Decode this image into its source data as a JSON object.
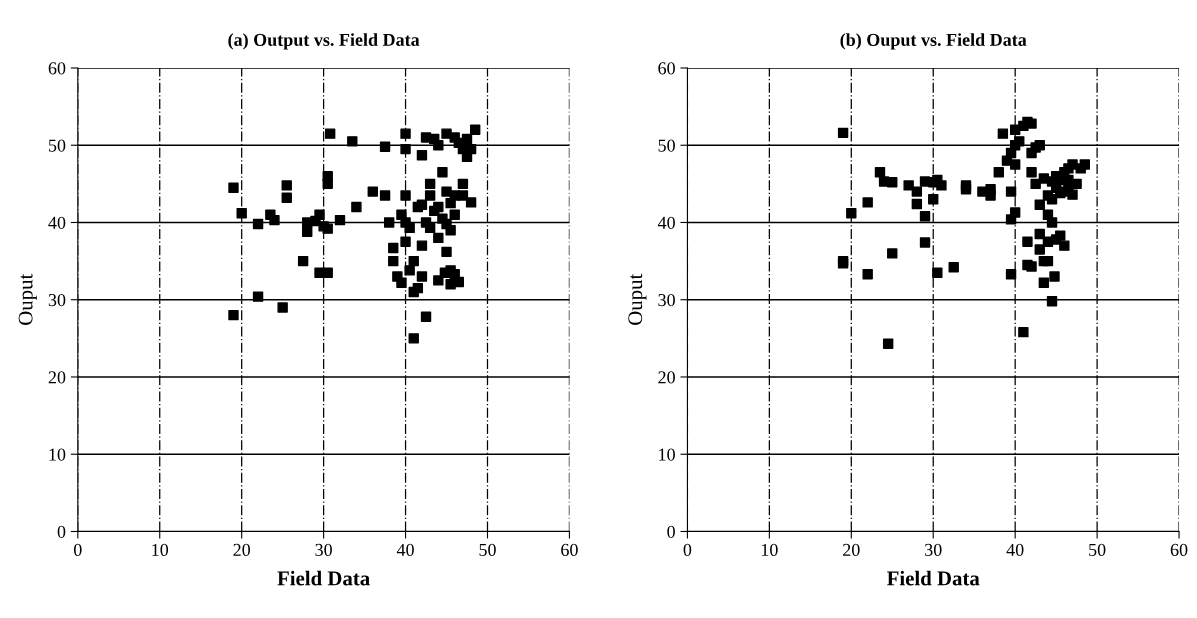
{
  "chart_data": [
    {
      "type": "scatter",
      "title": "(a) Output vs. Field Data",
      "xlabel": "Field Data",
      "ylabel": "Ouput",
      "marker": "square",
      "grid": true,
      "xlim": [
        0,
        60
      ],
      "ylim": [
        0,
        60
      ],
      "xticks": [
        0,
        10,
        20,
        30,
        40,
        50,
        60
      ],
      "yticks": [
        0,
        10,
        20,
        30,
        40,
        50,
        60
      ],
      "series": [
        {
          "color": "#000000",
          "x": [
            19,
            19,
            20,
            22,
            22,
            23.5,
            24,
            25,
            25.5,
            25.5,
            27.5,
            28,
            28,
            29,
            29.5,
            29.5,
            30.5,
            30,
            30.5,
            30.5,
            30.5,
            30.8,
            32,
            33.5,
            34,
            36,
            37.5,
            37.5,
            38,
            38.5,
            38.5,
            39,
            39.5,
            39.5,
            40,
            40,
            40,
            40,
            40,
            40.5,
            40.5,
            41,
            41,
            41,
            41.5,
            41.5,
            42,
            42,
            42,
            42.5,
            42.5,
            42,
            42.5,
            43,
            43,
            43,
            43.5,
            43.5,
            44,
            44,
            44,
            44,
            44.5,
            44.5,
            44.8,
            45,
            45,
            45,
            45,
            45.5,
            45.5,
            45.5,
            45.5,
            46,
            46,
            46,
            46,
            46.5,
            46.5,
            47,
            47,
            47,
            47.5,
            47.5,
            48,
            48,
            48.5
          ],
          "values": [
            44.5,
            28,
            41.2,
            30.4,
            39.8,
            41,
            40.3,
            29,
            43.2,
            44.8,
            35,
            38.8,
            40,
            40.2,
            41,
            33.5,
            33.5,
            39.5,
            39.2,
            45,
            46,
            51.5,
            40.3,
            50.5,
            42,
            44,
            49.8,
            43.5,
            40,
            36.7,
            35,
            33,
            32.2,
            41,
            51.5,
            49.5,
            43.5,
            40,
            37.5,
            33.8,
            39.3,
            35,
            31,
            25,
            31.5,
            42,
            42.3,
            37,
            33,
            27.8,
            51,
            48.7,
            40,
            45,
            43.5,
            39.3,
            41.5,
            50.8,
            50,
            42,
            38,
            32.5,
            46.5,
            40.5,
            33.5,
            51.5,
            44,
            39.8,
            36.2,
            42.5,
            39,
            33.8,
            32,
            51,
            43.5,
            41,
            33.3,
            50.3,
            32.3,
            49.5,
            45,
            43.5,
            48.5,
            50.8,
            42.6,
            49.5,
            52
          ]
        }
      ]
    },
    {
      "type": "scatter",
      "title": "(b) Ouput vs. Field Data",
      "xlabel": "Field Data",
      "ylabel": "Ouput",
      "marker": "square",
      "grid": true,
      "xlim": [
        0,
        60
      ],
      "ylim": [
        0,
        60
      ],
      "xticks": [
        0,
        10,
        20,
        30,
        40,
        50,
        60
      ],
      "yticks": [
        0,
        10,
        20,
        30,
        40,
        50,
        60
      ],
      "series": [
        {
          "color": "#000000",
          "x": [
            19,
            19,
            19,
            20,
            22,
            22,
            23.5,
            24,
            24.5,
            25,
            25,
            27,
            28,
            28,
            29,
            29,
            29,
            30,
            30,
            30.5,
            30.5,
            31,
            32.5,
            34,
            34,
            36,
            37,
            37,
            38,
            38.5,
            39,
            39.5,
            39.5,
            39.5,
            39.5,
            40,
            40,
            40,
            40,
            40.5,
            41,
            41,
            41.5,
            41.5,
            41.5,
            42,
            42,
            42,
            42,
            42.5,
            42.5,
            43,
            43,
            43,
            43,
            43.5,
            43.5,
            43.5,
            44,
            44,
            44,
            44,
            44.5,
            44.5,
            44.5,
            44.5,
            44.8,
            45,
            45,
            45,
            45.5,
            45.5,
            45.5,
            46,
            46,
            46,
            46.5,
            46.5,
            46.5,
            47,
            47,
            47.5,
            48,
            48.5
          ],
          "values": [
            51.6,
            35,
            34.7,
            41.2,
            42.6,
            33.3,
            46.5,
            45.3,
            24.3,
            36,
            45.2,
            44.8,
            44,
            42.4,
            40.8,
            37.4,
            45.3,
            45.2,
            43,
            33.5,
            45.5,
            44.8,
            34.2,
            44.8,
            44.3,
            44,
            44.3,
            43.5,
            46.5,
            51.5,
            48,
            49,
            44,
            40.4,
            33.3,
            52,
            50,
            47.5,
            41.3,
            50.5,
            52.5,
            25.8,
            53,
            37.5,
            34.5,
            52.8,
            49,
            46.5,
            34.3,
            49.7,
            45,
            50,
            42.3,
            38.5,
            36.5,
            45.7,
            35,
            32.2,
            43.5,
            41,
            37.5,
            35,
            45.3,
            43,
            40,
            29.8,
            33,
            46,
            44.5,
            37.8,
            45.5,
            43.8,
            38.3,
            46.5,
            44,
            37,
            47,
            45.5,
            44.5,
            47.5,
            43.6,
            45,
            47,
            47.5
          ]
        }
      ]
    }
  ]
}
